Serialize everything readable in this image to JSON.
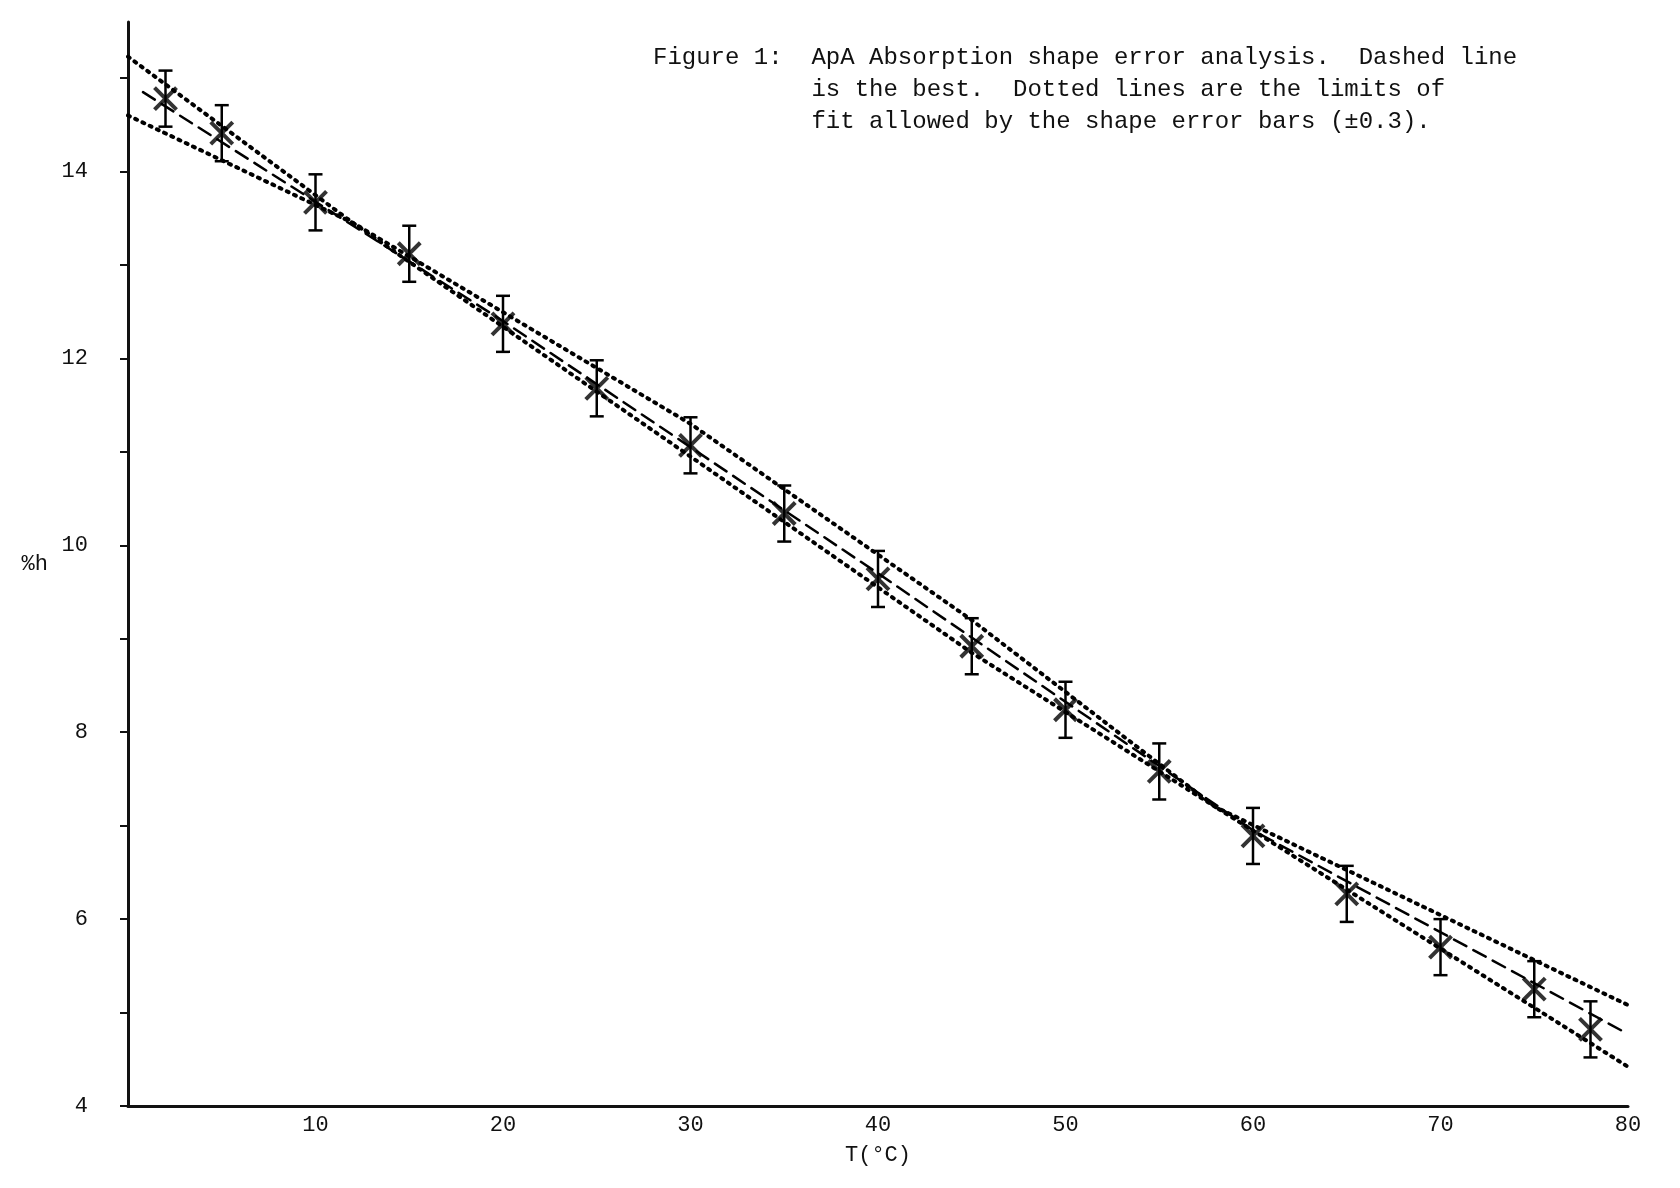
{
  "chart_data": {
    "type": "scatter",
    "title": "Figure 1:  ApA Absorption shape error analysis.  Dashed line\n           is the best.  Dotted lines are the limits of\n           fit allowed by the shape error bars (±0.3).",
    "xlabel": "T(°C)",
    "ylabel": "%h",
    "xlim": [
      0,
      80
    ],
    "xticks": [
      10,
      20,
      30,
      40,
      50,
      60,
      70,
      80
    ],
    "ylim": [
      4,
      15.6
    ],
    "yticks": [
      4,
      {
        "value": 5,
        "label": null
      },
      6,
      {
        "value": 7,
        "label": null
      },
      8,
      {
        "value": 9,
        "label": null
      },
      10,
      {
        "value": 11,
        "label": null
      },
      12,
      {
        "value": 13,
        "label": null
      },
      14,
      {
        "value": 15,
        "label": null
      }
    ],
    "grid": false,
    "series": [
      {
        "color": "#000000",
        "marker": "cross",
        "x": [
          2,
          5,
          10,
          15,
          20,
          25,
          30,
          35,
          40,
          45,
          50,
          55,
          60,
          65,
          70,
          75,
          78
        ],
        "values": [
          14.78,
          14.41,
          13.67,
          13.12,
          12.37,
          11.68,
          11.07,
          10.34,
          9.64,
          8.92,
          8.24,
          7.58,
          6.89,
          6.27,
          5.7,
          5.25,
          4.82
        ],
        "errors": [
          0.3,
          0.3,
          0.3,
          0.3,
          0.3,
          0.3,
          0.3,
          0.3,
          0.3,
          0.3,
          0.3,
          0.3,
          0.3,
          0.3,
          0.3,
          0.3,
          0.3
        ]
      },
      {
        "type": "line",
        "color": "#000000",
        "marker": "none",
        "line_style": "dashed",
        "x": [
          0.8,
          20,
          40,
          60,
          80
        ],
        "values": [
          14.85,
          12.4,
          9.7,
          6.95,
          4.77
        ]
      },
      {
        "type": "line",
        "color": "#000000",
        "marker": "none",
        "line_style": "dotted",
        "x": [
          0,
          12,
          30,
          45,
          58,
          80
        ],
        "values": [
          15.23,
          13.45,
          10.95,
          8.85,
          7.2,
          5.08
        ]
      },
      {
        "type": "line",
        "color": "#000000",
        "marker": "none",
        "line_style": "dotted",
        "x": [
          0,
          12,
          30,
          45,
          58,
          80
        ],
        "values": [
          14.6,
          13.45,
          11.3,
          9.2,
          7.2,
          4.42
        ]
      }
    ]
  }
}
